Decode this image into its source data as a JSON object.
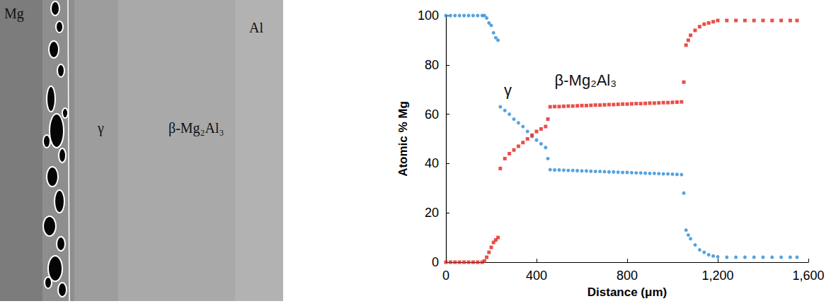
{
  "micrograph": {
    "labels": [
      "Mg",
      "γ",
      "β-Mg₂Al₃",
      "Al"
    ]
  },
  "chart_data": {
    "type": "scatter",
    "x_label": "Distance (μm)",
    "y_label": "Atomic % Mg",
    "annotations": [
      "γ",
      "β-Mg₂Al₃"
    ],
    "xlim": [
      0,
      1600
    ],
    "xticks": [
      0,
      400,
      800,
      1200,
      1600
    ],
    "ylim": [
      0,
      100
    ],
    "yticks": [
      0,
      20,
      40,
      60,
      80,
      100
    ],
    "grid": false,
    "x": [
      0,
      20,
      40,
      60,
      80,
      100,
      120,
      140,
      160,
      170,
      180,
      190,
      200,
      210,
      220,
      230,
      240,
      260,
      280,
      300,
      320,
      340,
      360,
      380,
      400,
      420,
      440,
      450,
      460,
      480,
      500,
      520,
      540,
      560,
      580,
      600,
      620,
      640,
      660,
      680,
      700,
      720,
      740,
      760,
      780,
      800,
      820,
      840,
      860,
      880,
      900,
      920,
      940,
      960,
      980,
      1000,
      1020,
      1040,
      1050,
      1060,
      1070,
      1080,
      1100,
      1120,
      1140,
      1160,
      1180,
      1200,
      1240,
      1280,
      1320,
      1360,
      1400,
      1440,
      1480,
      1520,
      1550
    ],
    "series": [
      {
        "color": "#2b8cd8",
        "marker": "circle",
        "values": [
          100,
          100,
          100,
          100,
          100,
          100,
          100,
          100,
          100,
          100,
          99,
          97,
          96,
          93,
          91,
          90,
          63,
          61.5,
          60,
          58,
          56.5,
          55,
          53,
          51,
          49.5,
          48,
          46.5,
          42,
          37.5,
          37.4,
          37.4,
          37.3,
          37.2,
          37.2,
          37.1,
          37.0,
          37.0,
          36.9,
          36.8,
          36.8,
          36.7,
          36.6,
          36.6,
          36.5,
          36.4,
          36.4,
          36.3,
          36.2,
          36.2,
          36.1,
          36.0,
          36.0,
          35.9,
          35.8,
          35.8,
          35.7,
          35.6,
          35.5,
          28,
          13,
          11,
          9.5,
          7,
          5,
          4,
          3,
          2.5,
          2.2,
          2,
          2,
          2,
          2,
          2,
          2,
          2,
          2,
          2
        ]
      },
      {
        "color": "#e5231b",
        "marker": "square",
        "values": [
          0,
          0,
          0,
          0,
          0,
          0,
          0,
          0,
          0,
          0.5,
          2,
          4,
          6,
          8,
          9,
          10,
          38,
          42,
          44,
          45.5,
          47,
          48.5,
          50,
          51.5,
          53,
          54,
          55,
          58,
          63.0,
          63.1,
          63.1,
          63.2,
          63.3,
          63.3,
          63.4,
          63.5,
          63.5,
          63.6,
          63.7,
          63.7,
          63.8,
          63.9,
          63.9,
          64.0,
          64.1,
          64.1,
          64.2,
          64.3,
          64.3,
          64.4,
          64.5,
          64.5,
          64.6,
          64.7,
          64.7,
          64.8,
          64.9,
          65.0,
          73,
          88,
          90,
          92,
          94,
          95.5,
          96.5,
          97,
          97.5,
          98,
          98,
          98,
          98,
          98,
          98,
          98,
          98,
          98,
          98
        ]
      }
    ]
  }
}
